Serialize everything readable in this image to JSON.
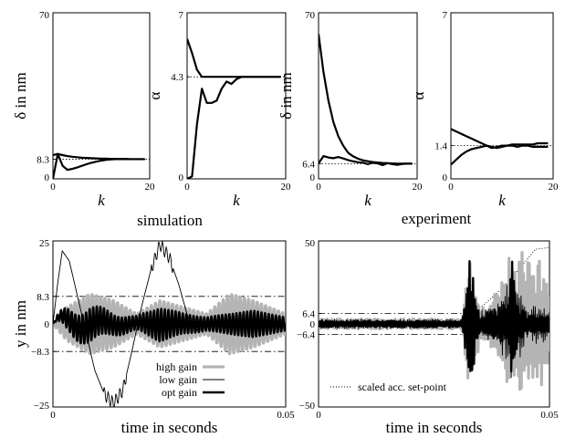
{
  "captions": {
    "left": "simulation",
    "right": "experiment"
  },
  "chart_data": [
    {
      "type": "line",
      "xlabel": "k",
      "ylabel": "δ in nm",
      "xlim": [
        0,
        20
      ],
      "ylim": [
        0,
        70
      ],
      "xticks": [
        "0",
        "20"
      ],
      "yticks": [
        "0",
        "8.3",
        "70"
      ],
      "reference": {
        "value": 8.3,
        "label": "8.3",
        "style": "dotted"
      },
      "series": [
        {
          "x": [
            0,
            1,
            2,
            3,
            4,
            5,
            6,
            7,
            8,
            9,
            10,
            11,
            12,
            13,
            14,
            15,
            16,
            17,
            18,
            19
          ],
          "values": [
            10,
            10.5,
            10,
            9.6,
            9.3,
            9.1,
            8.9,
            8.8,
            8.7,
            8.6,
            8.5,
            8.5,
            8.4,
            8.4,
            8.4,
            8.4,
            8.3,
            8.3,
            8.3,
            8.3
          ]
        },
        {
          "x": [
            0,
            1,
            2,
            3,
            4,
            5,
            6,
            7,
            8,
            9,
            10,
            11,
            12,
            13,
            14,
            15,
            16,
            17,
            18,
            19
          ],
          "values": [
            0,
            10.5,
            5.5,
            3.8,
            4.2,
            4.8,
            5.5,
            6.2,
            6.8,
            7.3,
            7.7,
            8,
            8.2,
            8.3,
            8.3,
            8.3,
            8.3,
            8.3,
            8.3,
            8.3
          ]
        }
      ]
    },
    {
      "type": "line",
      "xlabel": "k",
      "ylabel": "α",
      "xlim": [
        0,
        20
      ],
      "ylim": [
        0,
        7
      ],
      "xticks": [
        "0",
        "20"
      ],
      "yticks": [
        "0",
        "4.3",
        "7"
      ],
      "reference": {
        "value": 4.3,
        "label": "4.3",
        "style": "dotted"
      },
      "series": [
        {
          "x": [
            0,
            1,
            2,
            3,
            4,
            5,
            6,
            7,
            8,
            9,
            10,
            11,
            12,
            13,
            14,
            15,
            16,
            17,
            18,
            19
          ],
          "values": [
            5.9,
            5.3,
            4.6,
            4.3,
            4.3,
            4.3,
            4.3,
            4.3,
            4.3,
            4.3,
            4.3,
            4.3,
            4.3,
            4.3,
            4.3,
            4.3,
            4.3,
            4.3,
            4.3,
            4.3
          ]
        },
        {
          "x": [
            0,
            1,
            2,
            3,
            4,
            5,
            6,
            7,
            8,
            9,
            10,
            11,
            12,
            13,
            14,
            15,
            16,
            17,
            18,
            19
          ],
          "values": [
            0,
            0.1,
            2.3,
            3.8,
            3.2,
            3.2,
            3.3,
            3.8,
            4.1,
            4,
            4.2,
            4.3,
            4.3,
            4.3,
            4.3,
            4.3,
            4.3,
            4.3,
            4.3,
            4.3
          ]
        }
      ]
    },
    {
      "type": "line",
      "xlabel": "k",
      "ylabel": "δ in nm",
      "xlim": [
        0,
        20
      ],
      "ylim": [
        0,
        70
      ],
      "xticks": [
        "0",
        "20"
      ],
      "yticks": [
        "0",
        "6.4",
        "70"
      ],
      "reference": {
        "value": 6.4,
        "label": "6.4",
        "style": "dotted"
      },
      "series": [
        {
          "x": [
            0,
            1,
            2,
            3,
            4,
            5,
            6,
            7,
            8,
            9,
            10,
            11,
            12,
            13,
            14,
            15,
            16,
            17,
            18,
            19
          ],
          "values": [
            61,
            45,
            33,
            24,
            18,
            14,
            11,
            9.5,
            8.5,
            7.8,
            7.4,
            7.1,
            6.9,
            6.7,
            6.6,
            6.5,
            6.4,
            6.4,
            6.4,
            6.4
          ]
        },
        {
          "x": [
            0,
            1,
            2,
            3,
            4,
            5,
            6,
            7,
            8,
            9,
            10,
            11,
            12,
            13,
            14,
            15,
            16,
            17,
            18,
            19
          ],
          "values": [
            6.5,
            9.6,
            9,
            8.7,
            9.2,
            8.6,
            7.9,
            7.4,
            7,
            6.8,
            6.2,
            6.8,
            6.5,
            5.8,
            6.6,
            6.2,
            5.9,
            6.3,
            6.4,
            6.4
          ]
        }
      ]
    },
    {
      "type": "line",
      "xlabel": "k",
      "ylabel": "α",
      "xlim": [
        0,
        20
      ],
      "ylim": [
        0,
        7
      ],
      "xticks": [
        "0",
        "20"
      ],
      "yticks": [
        "0",
        "1.4",
        "7"
      ],
      "reference": {
        "value": 1.4,
        "label": "1.4",
        "style": "dotted"
      },
      "series": [
        {
          "x": [
            0,
            1,
            2,
            3,
            4,
            5,
            6,
            7,
            8,
            9,
            10,
            11,
            12,
            13,
            14,
            15,
            16,
            17,
            18,
            19
          ],
          "values": [
            2.1,
            2,
            1.9,
            1.8,
            1.7,
            1.6,
            1.5,
            1.4,
            1.35,
            1.3,
            1.35,
            1.4,
            1.4,
            1.35,
            1.4,
            1.4,
            1.35,
            1.35,
            1.35,
            1.35
          ]
        },
        {
          "x": [
            0,
            1,
            2,
            3,
            4,
            5,
            6,
            7,
            8,
            9,
            10,
            11,
            12,
            13,
            14,
            15,
            16,
            17,
            18,
            19
          ],
          "values": [
            0.6,
            0.8,
            1,
            1.15,
            1.25,
            1.3,
            1.35,
            1.4,
            1.3,
            1.35,
            1.4,
            1.4,
            1.45,
            1.45,
            1.45,
            1.45,
            1.45,
            1.5,
            1.5,
            1.5
          ]
        }
      ]
    },
    {
      "type": "line",
      "xlabel": "time in seconds",
      "ylabel": "y in nm",
      "xlim": [
        0,
        0.05
      ],
      "ylim": [
        -25,
        25
      ],
      "xticks": [
        "0",
        "0.05"
      ],
      "yticks": [
        "−25",
        "−8.3",
        "0",
        "8.3",
        "25"
      ],
      "references": [
        8.3,
        -8.3
      ],
      "legend": {
        "position": "bottom-center",
        "entries": [
          "high gain",
          "low gain",
          "opt gain"
        ]
      },
      "series": [
        {
          "name": "high gain",
          "color": "#b4b4b4",
          "kind": "oscillating",
          "freq_per_s": 1100,
          "envelope_t": [
            0,
            0.003,
            0.008,
            0.013,
            0.018,
            0.023,
            0.028,
            0.033,
            0.038,
            0.043,
            0.05
          ],
          "envelope_v": [
            0,
            5,
            9,
            7,
            3,
            7,
            5,
            3,
            9,
            7,
            3
          ]
        },
        {
          "name": "low gain",
          "color": "#000000",
          "kind": "smooth",
          "x": [
            0,
            0.001,
            0.002,
            0.0035,
            0.005,
            0.007,
            0.009,
            0.011,
            0.013,
            0.015,
            0.017,
            0.019,
            0.021,
            0.023,
            0.025,
            0.027,
            0.029,
            0.031,
            0.033,
            0.035,
            0.05
          ],
          "values": [
            0,
            12,
            22,
            19,
            10,
            -2,
            -14,
            -21,
            -24,
            -20,
            -8,
            5,
            16,
            24,
            20,
            12,
            2,
            -2,
            -1,
            0,
            0
          ]
        },
        {
          "name": "opt gain",
          "color": "#000000",
          "kind": "oscillating",
          "freq_per_s": 1300,
          "envelope_t": [
            0,
            0.003,
            0.008,
            0.013,
            0.018,
            0.023,
            0.028,
            0.033,
            0.038,
            0.043,
            0.05
          ],
          "envelope_v": [
            0,
            3,
            5,
            3,
            2,
            5,
            3,
            2,
            3,
            4,
            2
          ]
        }
      ]
    },
    {
      "type": "line",
      "xlabel": "time in seconds",
      "ylabel": "",
      "xlim": [
        0,
        0.05
      ],
      "ylim": [
        -50,
        50
      ],
      "xticks": [
        "0",
        "0.05"
      ],
      "yticks": [
        "−50",
        "−6.4",
        "0",
        "6.4",
        "50"
      ],
      "references": [
        6.4,
        -6.4
      ],
      "legend": {
        "position": "bottom-left",
        "entries": [
          "scaled acc. set-point"
        ]
      },
      "series": [
        {
          "name": "scaled acc. set-point",
          "color": "#000000",
          "kind": "dotted",
          "x": [
            0,
            0.032,
            0.0325,
            0.036,
            0.04,
            0.044,
            0.047,
            0.05
          ],
          "values": [
            0,
            0,
            5,
            12,
            22,
            35,
            45,
            46
          ]
        },
        {
          "name": "",
          "color": "#b4b4b4",
          "kind": "noisy",
          "x": [
            0,
            0.031,
            0.032,
            0.033,
            0.034,
            0.035,
            0.037,
            0.039,
            0.04,
            0.041,
            0.042,
            0.043,
            0.044,
            0.045,
            0.046,
            0.047,
            0.048,
            0.049,
            0.05
          ],
          "envelope": [
            3,
            3,
            25,
            48,
            25,
            10,
            15,
            20,
            30,
            45,
            30,
            35,
            45,
            40,
            35,
            38,
            40,
            30,
            25
          ]
        },
        {
          "name": "",
          "color": "#000000",
          "kind": "noisy-thin",
          "x": [
            0,
            0.031,
            0.032,
            0.033,
            0.034,
            0.035,
            0.037,
            0.039,
            0.04,
            0.041,
            0.042,
            0.043,
            0.044,
            0.045,
            0.046,
            0.047,
            0.048,
            0.049,
            0.05
          ],
          "envelope": [
            3,
            3,
            20,
            40,
            18,
            8,
            12,
            14,
            20,
            26,
            38,
            22,
            20,
            8,
            10,
            12,
            14,
            10,
            8
          ]
        },
        {
          "name": "",
          "color": "#000000",
          "kind": "noisy-thick",
          "x": [
            0,
            0.031,
            0.032,
            0.033,
            0.034,
            0.035,
            0.037,
            0.039,
            0.04,
            0.041,
            0.042,
            0.043,
            0.044,
            0.045,
            0.046,
            0.047,
            0.048,
            0.049,
            0.05
          ],
          "envelope": [
            2,
            2,
            22,
            45,
            15,
            5,
            8,
            10,
            12,
            14,
            40,
            14,
            10,
            6,
            6,
            6,
            6,
            5,
            5
          ]
        }
      ]
    }
  ]
}
